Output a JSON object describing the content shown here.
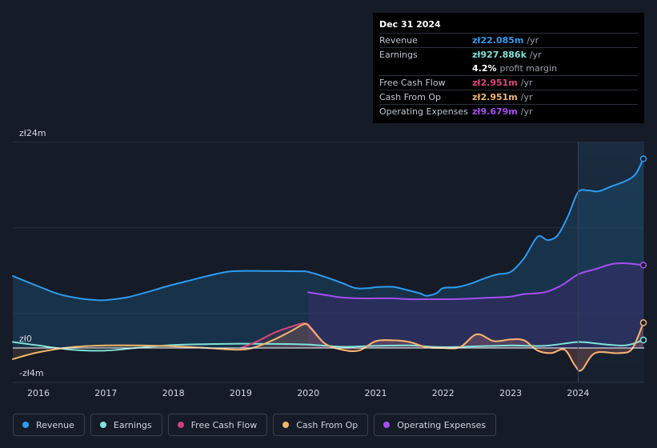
{
  "tooltip": {
    "date": "Dec 31 2024",
    "rows": [
      {
        "label": "Revenue",
        "value": "zł22.085m",
        "unit": "/yr",
        "color": "#2d9cf0"
      },
      {
        "label": "Earnings",
        "value": "zł927.886k",
        "unit": "/yr",
        "color": "#7fe3d8"
      },
      {
        "label": "",
        "value": "4.2%",
        "unit": "profit margin",
        "color": "#ffffff"
      },
      {
        "label": "Free Cash Flow",
        "value": "zł2.951m",
        "unit": "/yr",
        "color": "#e0447f"
      },
      {
        "label": "Cash From Op",
        "value": "zł2.951m",
        "unit": "/yr",
        "color": "#f0b56c"
      },
      {
        "label": "Operating Expenses",
        "value": "zł9.679m",
        "unit": "/yr",
        "color": "#a64df5"
      }
    ]
  },
  "legend": [
    {
      "label": "Revenue",
      "color": "#2d9cf0"
    },
    {
      "label": "Earnings",
      "color": "#7fe3d8"
    },
    {
      "label": "Free Cash Flow",
      "color": "#c7407a"
    },
    {
      "label": "Cash From Op",
      "color": "#f0b56c"
    },
    {
      "label": "Operating Expenses",
      "color": "#a64df5"
    }
  ],
  "chart_data": {
    "type": "line",
    "title": "",
    "xlabel": "",
    "ylabel": "",
    "currency": "zł",
    "ylim": [
      -4,
      24
    ],
    "y_tick_labels": [
      {
        "value": 24,
        "label": "zł24m"
      },
      {
        "value": 0,
        "label": "zł0"
      },
      {
        "value": -4,
        "label": "-zł4m"
      }
    ],
    "x_tick_labels": [
      "2016",
      "2017",
      "2018",
      "2019",
      "2020",
      "2021",
      "2022",
      "2023",
      "2024"
    ],
    "x_tick_values": [
      2016,
      2017,
      2018,
      2019,
      2020,
      2021,
      2022,
      2023,
      2024
    ],
    "xlim": [
      2015.6,
      2025.0
    ],
    "forecast_band_start": 2024.0,
    "series": [
      {
        "name": "Revenue",
        "color": "#2d9cf0",
        "fill": true,
        "fill_color": "#1b4a6b",
        "x": [
          2015.62,
          2016.0,
          2016.3,
          2016.6,
          2016.85,
          2017.0,
          2017.3,
          2017.6,
          2017.9,
          2018.2,
          2018.5,
          2018.8,
          2019.0,
          2019.3,
          2019.6,
          2019.9,
          2020.0,
          2020.25,
          2020.5,
          2020.7,
          2020.9,
          2021.0,
          2021.25,
          2021.45,
          2021.65,
          2021.75,
          2021.9,
          2022.0,
          2022.2,
          2022.4,
          2022.6,
          2022.8,
          2023.0,
          2023.2,
          2023.4,
          2023.55,
          2023.7,
          2023.85,
          2024.0,
          2024.15,
          2024.3,
          2024.5,
          2024.7,
          2024.85,
          2025.0
        ],
        "y": [
          8.4,
          7.2,
          6.3,
          5.8,
          5.6,
          5.6,
          5.9,
          6.5,
          7.2,
          7.8,
          8.4,
          8.9,
          9.0,
          9.0,
          8.98,
          8.96,
          8.9,
          8.3,
          7.6,
          7.0,
          7.0,
          7.1,
          7.15,
          6.8,
          6.4,
          6.1,
          6.4,
          7.0,
          7.1,
          7.5,
          8.1,
          8.6,
          8.9,
          10.5,
          13.0,
          12.6,
          13.2,
          15.4,
          18.2,
          18.4,
          18.3,
          18.9,
          19.5,
          20.3,
          22.1
        ]
      },
      {
        "name": "Operating Expenses",
        "color": "#a64df5",
        "fill": true,
        "fill_color": "#3a2c6b",
        "x": [
          2020.0,
          2020.25,
          2020.5,
          2020.75,
          2021.0,
          2021.25,
          2021.5,
          2021.75,
          2022.0,
          2022.25,
          2022.5,
          2022.75,
          2023.0,
          2023.2,
          2023.5,
          2023.75,
          2024.0,
          2024.25,
          2024.5,
          2024.7,
          2025.0
        ],
        "y": [
          6.5,
          6.2,
          5.9,
          5.8,
          5.8,
          5.8,
          5.7,
          5.7,
          5.7,
          5.72,
          5.8,
          5.9,
          6.0,
          6.3,
          6.5,
          7.3,
          8.6,
          9.2,
          9.8,
          9.9,
          9.68
        ]
      },
      {
        "name": "Earnings",
        "color": "#7fe3d8",
        "fill": false,
        "x": [
          2015.62,
          2016.0,
          2016.5,
          2017.0,
          2017.5,
          2018.0,
          2018.5,
          2019.0,
          2019.5,
          2020.0,
          2020.5,
          2021.0,
          2021.5,
          2022.0,
          2022.5,
          2023.0,
          2023.5,
          2024.0,
          2024.3,
          2024.7,
          2025.0
        ],
        "y": [
          0.7,
          0.3,
          -0.2,
          -0.3,
          0.05,
          0.35,
          0.45,
          0.5,
          0.48,
          0.4,
          0.15,
          0.25,
          0.3,
          0.1,
          0.2,
          0.3,
          0.25,
          0.7,
          0.5,
          0.3,
          0.93
        ]
      },
      {
        "name": "Free Cash Flow",
        "color": "#e0447f",
        "fill": false,
        "x": [
          2019.0,
          2019.25,
          2019.5,
          2019.75,
          2019.95,
          2020.05,
          2020.25,
          2020.5,
          2020.75,
          2021.0,
          2021.25,
          2021.5,
          2021.75,
          2022.0,
          2022.25,
          2022.5,
          2022.75,
          2023.0,
          2023.2,
          2023.4,
          2023.6,
          2023.8,
          2023.95,
          2024.05,
          2024.25,
          2024.6,
          2024.8,
          2025.0
        ],
        "y": [
          0.0,
          0.8,
          1.8,
          2.5,
          2.9,
          2.3,
          0.5,
          -0.2,
          -0.3,
          0.8,
          0.9,
          0.7,
          0.1,
          0.0,
          0.1,
          1.6,
          0.8,
          1.0,
          0.9,
          -0.3,
          -0.6,
          -0.2,
          -2.0,
          -2.6,
          -0.6,
          -0.6,
          -0.1,
          2.95
        ]
      },
      {
        "name": "Cash From Op",
        "color": "#f0b56c",
        "fill": false,
        "x": [
          2015.62,
          2016.0,
          2016.5,
          2017.0,
          2017.5,
          2018.0,
          2018.5,
          2019.0,
          2019.25,
          2019.5,
          2019.75,
          2019.95,
          2020.05,
          2020.25,
          2020.5,
          2020.75,
          2021.0,
          2021.25,
          2021.5,
          2021.75,
          2022.0,
          2022.25,
          2022.5,
          2022.75,
          2023.0,
          2023.2,
          2023.4,
          2023.6,
          2023.8,
          2023.95,
          2024.05,
          2024.25,
          2024.6,
          2024.8,
          2025.0
        ],
        "y": [
          -1.3,
          -0.5,
          0.1,
          0.3,
          0.3,
          0.2,
          0.0,
          -0.2,
          0.2,
          1.0,
          2.0,
          2.8,
          2.2,
          0.5,
          -0.2,
          -0.3,
          0.8,
          0.9,
          0.7,
          0.1,
          0.0,
          0.1,
          1.6,
          0.8,
          1.0,
          0.9,
          -0.3,
          -0.6,
          -0.2,
          -2.0,
          -2.6,
          -0.6,
          -0.6,
          -0.1,
          2.95
        ]
      }
    ]
  }
}
